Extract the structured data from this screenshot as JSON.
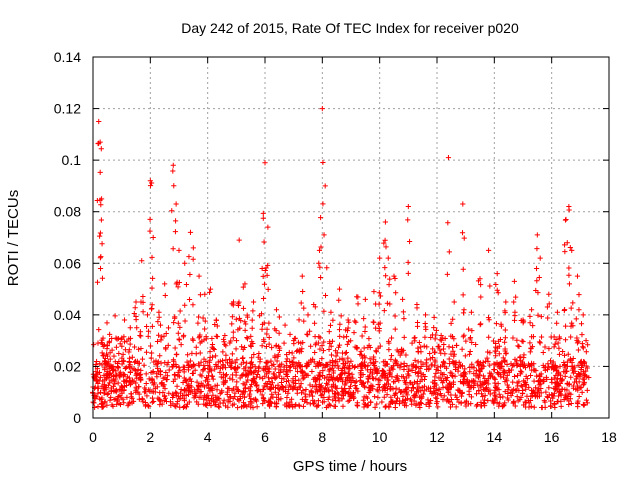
{
  "chart_data": {
    "type": "scatter",
    "title": "Day 242 of 2015, Rate Of TEC Index for receiver p020",
    "xlabel": "GPS time / hours",
    "ylabel": "ROTI / TECUs",
    "xlim": [
      0,
      18
    ],
    "ylim": [
      0,
      0.14
    ],
    "xticks": [
      "0",
      "2",
      "4",
      "6",
      "8",
      "10",
      "12",
      "14",
      "16",
      "18"
    ],
    "yticks": [
      "0",
      "0.02",
      "0.04",
      "0.06",
      "0.08",
      "0.1",
      "0.12",
      "0.14"
    ],
    "grid": true,
    "marker": "+",
    "series_color": "#ff0000",
    "series": [
      {
        "name": "ROTI",
        "x": [
          0.0,
          0.1,
          0.2,
          0.25,
          0.3,
          0.35,
          0.5,
          0.7,
          0.9,
          1.1,
          1.3,
          1.5,
          1.7,
          1.9,
          2.0,
          2.1,
          2.3,
          2.5,
          2.8,
          2.9,
          3.0,
          3.2,
          3.4,
          3.5,
          3.7,
          3.9,
          4.1,
          4.3,
          4.6,
          4.9,
          5.1,
          5.3,
          5.6,
          5.9,
          6.0,
          6.1,
          6.4,
          6.7,
          7.0,
          7.3,
          7.5,
          7.7,
          7.9,
          8.0,
          8.1,
          8.3,
          8.6,
          8.9,
          9.2,
          9.5,
          9.8,
          10.0,
          10.2,
          10.3,
          10.5,
          10.8,
          11.0,
          11.3,
          11.6,
          11.9,
          12.2,
          12.4,
          12.6,
          12.9,
          13.2,
          13.5,
          13.8,
          14.1,
          14.4,
          14.7,
          15.0,
          15.3,
          15.5,
          15.6,
          15.9,
          16.2,
          16.5,
          16.6,
          16.7,
          16.9,
          17.1,
          17.2
        ],
        "y": [
          0.012,
          0.018,
          0.115,
          0.107,
          0.085,
          0.031,
          0.028,
          0.02,
          0.025,
          0.038,
          0.035,
          0.045,
          0.061,
          0.04,
          0.092,
          0.07,
          0.041,
          0.052,
          0.098,
          0.083,
          0.065,
          0.06,
          0.072,
          0.066,
          0.055,
          0.048,
          0.05,
          0.038,
          0.032,
          0.045,
          0.069,
          0.052,
          0.045,
          0.058,
          0.099,
          0.074,
          0.042,
          0.036,
          0.03,
          0.055,
          0.04,
          0.044,
          0.065,
          0.12,
          0.09,
          0.041,
          0.05,
          0.038,
          0.047,
          0.046,
          0.049,
          0.062,
          0.076,
          0.062,
          0.055,
          0.046,
          0.082,
          0.044,
          0.04,
          0.039,
          0.031,
          0.101,
          0.045,
          0.083,
          0.041,
          0.054,
          0.065,
          0.056,
          0.045,
          0.053,
          0.038,
          0.042,
          0.071,
          0.062,
          0.048,
          0.041,
          0.077,
          0.082,
          0.065,
          0.055,
          0.04,
          0.03
        ]
      }
    ],
    "notes": "Dense band of points between 0.005 and 0.03 across 0-17.3 hours plus scattered spikes; listed points are the envelope peaks."
  }
}
